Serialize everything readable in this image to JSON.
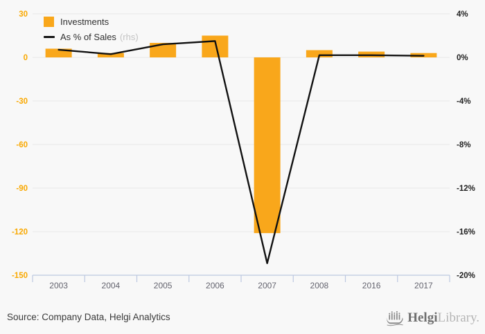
{
  "chart_data": {
    "type": "bar",
    "categories": [
      "2003",
      "2004",
      "2005",
      "2006",
      "2007",
      "2008",
      "2016",
      "2017"
    ],
    "series": [
      {
        "name": "Investments",
        "type": "bar",
        "axis": "left",
        "color": "#F9A71B",
        "values": [
          6,
          3,
          10,
          15,
          -121,
          5,
          4,
          3
        ]
      },
      {
        "name": "As % of Sales",
        "type": "line",
        "axis": "right",
        "color": "#111111",
        "values": [
          0.7,
          0.3,
          1.2,
          1.5,
          -18.9,
          0.2,
          0.2,
          0.15
        ]
      }
    ],
    "left_axis": {
      "ticks": [
        30,
        0,
        -30,
        -60,
        -90,
        -120,
        -150
      ],
      "range": [
        -150,
        30
      ],
      "color": "#F9A800"
    },
    "right_axis": {
      "ticks": [
        "4%",
        "0%",
        "-4%",
        "-8%",
        "-12%",
        "-16%",
        "-20%"
      ],
      "range": [
        -20,
        4
      ],
      "color": "#222222"
    },
    "grid": true,
    "legend_position": "top-left",
    "title": "",
    "xlabel": "",
    "ylabel": ""
  },
  "legend": {
    "investments_label": "Investments",
    "sales_label": "As % of Sales",
    "rhs_note": "(rhs)"
  },
  "footer": {
    "source": "Source: Company Data, Helgi Analytics",
    "logo_bold": "Helgi",
    "logo_light": "Library."
  },
  "colors": {
    "background": "#f8f8f8",
    "bar": "#F9A71B",
    "line": "#111111",
    "gridline": "#e9e9e9",
    "axis": "#bcc8e0",
    "x_labels": "#63636e",
    "left_labels": "#F9A800",
    "right_labels": "#222222"
  }
}
